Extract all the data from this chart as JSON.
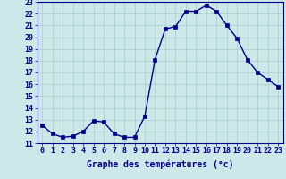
{
  "hours": [
    0,
    1,
    2,
    3,
    4,
    5,
    6,
    7,
    8,
    9,
    10,
    11,
    12,
    13,
    14,
    15,
    16,
    17,
    18,
    19,
    20,
    21,
    22,
    23
  ],
  "temperatures": [
    12.5,
    11.8,
    11.5,
    11.6,
    12.0,
    12.9,
    12.8,
    11.8,
    11.5,
    11.5,
    13.3,
    18.1,
    20.7,
    20.9,
    22.2,
    22.2,
    22.7,
    22.2,
    21.0,
    19.9,
    18.1,
    17.0,
    16.4,
    15.8
  ],
  "line_color": "#00008b",
  "marker": "s",
  "marker_size": 2.2,
  "linewidth": 1.0,
  "bg_color": "#cce8e8",
  "grid_color": "#aacccc",
  "xlabel": "Graphe des températures (°c)",
  "xlabel_color": "#00008b",
  "xlabel_fontsize": 7,
  "tick_color": "#00008b",
  "tick_fontsize": 6,
  "ylim": [
    11,
    23
  ],
  "xlim": [
    -0.5,
    23.5
  ],
  "yticks": [
    11,
    12,
    13,
    14,
    15,
    16,
    17,
    18,
    19,
    20,
    21,
    22,
    23
  ],
  "xticks": [
    0,
    1,
    2,
    3,
    4,
    5,
    6,
    7,
    8,
    9,
    10,
    11,
    12,
    13,
    14,
    15,
    16,
    17,
    18,
    19,
    20,
    21,
    22,
    23
  ]
}
